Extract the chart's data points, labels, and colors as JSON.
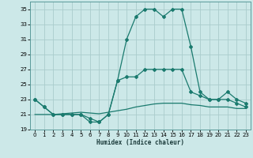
{
  "xlabel": "Humidex (Indice chaleur)",
  "background_color": "#cce8e8",
  "grid_color": "#aacccc",
  "line_color": "#1a7a6e",
  "xlim": [
    -0.5,
    23.5
  ],
  "ylim": [
    19,
    36
  ],
  "yticks": [
    19,
    21,
    23,
    25,
    27,
    29,
    31,
    33,
    35
  ],
  "xticks": [
    0,
    1,
    2,
    3,
    4,
    5,
    6,
    7,
    8,
    9,
    10,
    11,
    12,
    13,
    14,
    15,
    16,
    17,
    18,
    19,
    20,
    21,
    22,
    23
  ],
  "series_peak": {
    "x": [
      0,
      1,
      2,
      3,
      4,
      5,
      6,
      7,
      8,
      9,
      10,
      11,
      12,
      13,
      14,
      15,
      16,
      17,
      18,
      19,
      20,
      21,
      22,
      23
    ],
    "y": [
      23,
      22,
      21,
      21,
      21,
      21,
      20,
      20,
      21,
      25.5,
      31,
      34,
      35,
      35,
      34,
      35,
      35,
      30,
      24,
      23,
      23,
      24,
      23,
      22.5
    ]
  },
  "series_mid": {
    "x": [
      0,
      1,
      2,
      3,
      4,
      5,
      6,
      7,
      8,
      9,
      10,
      11,
      12,
      13,
      14,
      15,
      16,
      17,
      18,
      19,
      20,
      21,
      22,
      23
    ],
    "y": [
      23,
      22,
      21,
      21,
      21,
      21,
      20.5,
      20,
      21,
      25.5,
      26,
      26,
      27,
      27,
      27,
      27,
      27,
      24,
      23.5,
      23,
      23,
      23,
      22.5,
      22
    ]
  },
  "series_flat": {
    "x": [
      0,
      1,
      2,
      3,
      4,
      5,
      6,
      7,
      8,
      9,
      10,
      11,
      12,
      13,
      14,
      15,
      16,
      17,
      18,
      19,
      20,
      21,
      22,
      23
    ],
    "y": [
      21,
      21,
      21,
      21.1,
      21.2,
      21.3,
      21.2,
      21.1,
      21.3,
      21.5,
      21.7,
      22,
      22.2,
      22.4,
      22.5,
      22.5,
      22.5,
      22.3,
      22.2,
      22,
      22,
      22,
      21.8,
      21.8
    ]
  }
}
